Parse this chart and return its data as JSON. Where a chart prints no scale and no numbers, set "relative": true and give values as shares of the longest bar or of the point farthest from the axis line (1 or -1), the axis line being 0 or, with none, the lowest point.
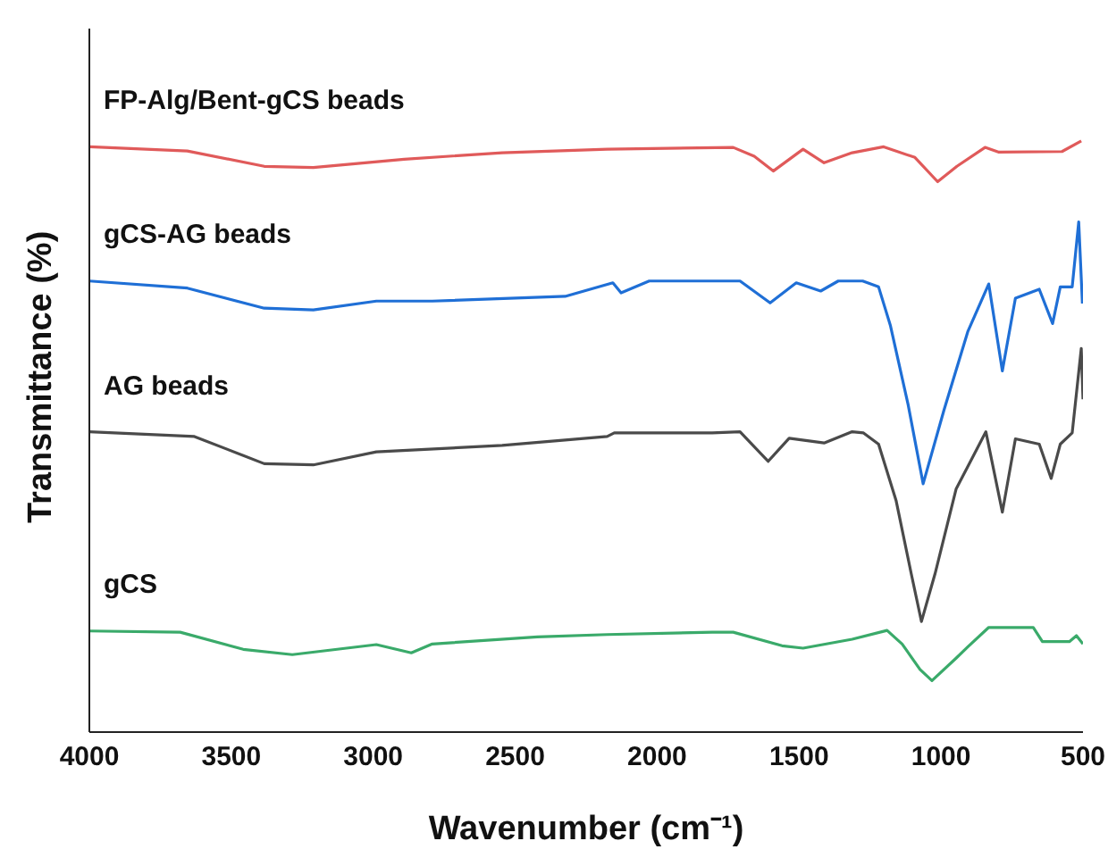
{
  "chart_data": {
    "type": "line",
    "relative": true,
    "xlabel": "Wavenumber (cm⁻¹)",
    "ylabel": "Transmittance (%)",
    "xlim": [
      4000,
      500
    ],
    "xticks": [
      4000,
      3500,
      3000,
      2500,
      2000,
      1500,
      1000,
      500
    ],
    "grid": false,
    "legend": false,
    "marker": "none",
    "line_style": "solid",
    "series": [
      {
        "name": "FP-Alg/Bent-gCS beads",
        "color": "#e05a5a",
        "x": [
          4000,
          3655,
          3384,
          3211,
          2891,
          2546,
          2176,
          1732,
          1658,
          1591,
          1486,
          1412,
          1313,
          1202,
          1092,
          1012,
          944,
          845,
          796,
          574,
          506
        ],
        "values": [
          0.99,
          0.983,
          0.957,
          0.955,
          0.969,
          0.98,
          0.986,
          0.989,
          0.974,
          0.949,
          0.986,
          0.963,
          0.98,
          0.99,
          0.972,
          0.931,
          0.957,
          0.989,
          0.981,
          0.982,
          1.0
        ]
      },
      {
        "name": "gCS-AG beads",
        "color": "#1f6fd6",
        "x": [
          4000,
          3655,
          3384,
          3211,
          2989,
          2792,
          2324,
          2156,
          2127,
          2028,
          1708,
          1602,
          1510,
          1424,
          1362,
          1276,
          1220,
          1178,
          1116,
          1063,
          990,
          906,
          832,
          784,
          738,
          654,
          607,
          580,
          538,
          515,
          502
        ],
        "values": [
          0.763,
          0.751,
          0.717,
          0.714,
          0.729,
          0.729,
          0.737,
          0.76,
          0.743,
          0.763,
          0.763,
          0.726,
          0.76,
          0.746,
          0.763,
          0.763,
          0.753,
          0.687,
          0.554,
          0.42,
          0.544,
          0.677,
          0.758,
          0.611,
          0.734,
          0.749,
          0.691,
          0.753,
          0.753,
          0.863,
          0.725
        ]
      },
      {
        "name": "AG beads",
        "color": "#4a4a4a",
        "x": [
          4000,
          3630,
          3384,
          3211,
          2989,
          2546,
          2176,
          2151,
          1806,
          1708,
          1609,
          1535,
          1412,
          1313,
          1273,
          1220,
          1158,
          1105,
          1069,
          1021,
          947,
          842,
          784,
          738,
          654,
          612,
          580,
          538,
          506,
          500
        ],
        "values": [
          0.508,
          0.5,
          0.454,
          0.452,
          0.474,
          0.485,
          0.5,
          0.506,
          0.506,
          0.508,
          0.458,
          0.497,
          0.489,
          0.508,
          0.506,
          0.487,
          0.391,
          0.268,
          0.187,
          0.268,
          0.411,
          0.508,
          0.372,
          0.496,
          0.487,
          0.429,
          0.487,
          0.506,
          0.649,
          0.563
        ]
      },
      {
        "name": "gCS",
        "color": "#3aaa6a",
        "x": [
          4000,
          3680,
          3458,
          3285,
          2989,
          2866,
          2792,
          2422,
          2176,
          1806,
          1732,
          1560,
          1486,
          1313,
          1190,
          1158,
          1137,
          1074,
          1032,
          947,
          906,
          832,
          675,
          643,
          548,
          523,
          500
        ],
        "values": [
          0.171,
          0.169,
          0.14,
          0.131,
          0.148,
          0.134,
          0.149,
          0.161,
          0.165,
          0.169,
          0.169,
          0.146,
          0.142,
          0.157,
          0.172,
          0.158,
          0.149,
          0.106,
          0.087,
          0.125,
          0.144,
          0.177,
          0.177,
          0.153,
          0.153,
          0.163,
          0.149
        ]
      }
    ]
  }
}
